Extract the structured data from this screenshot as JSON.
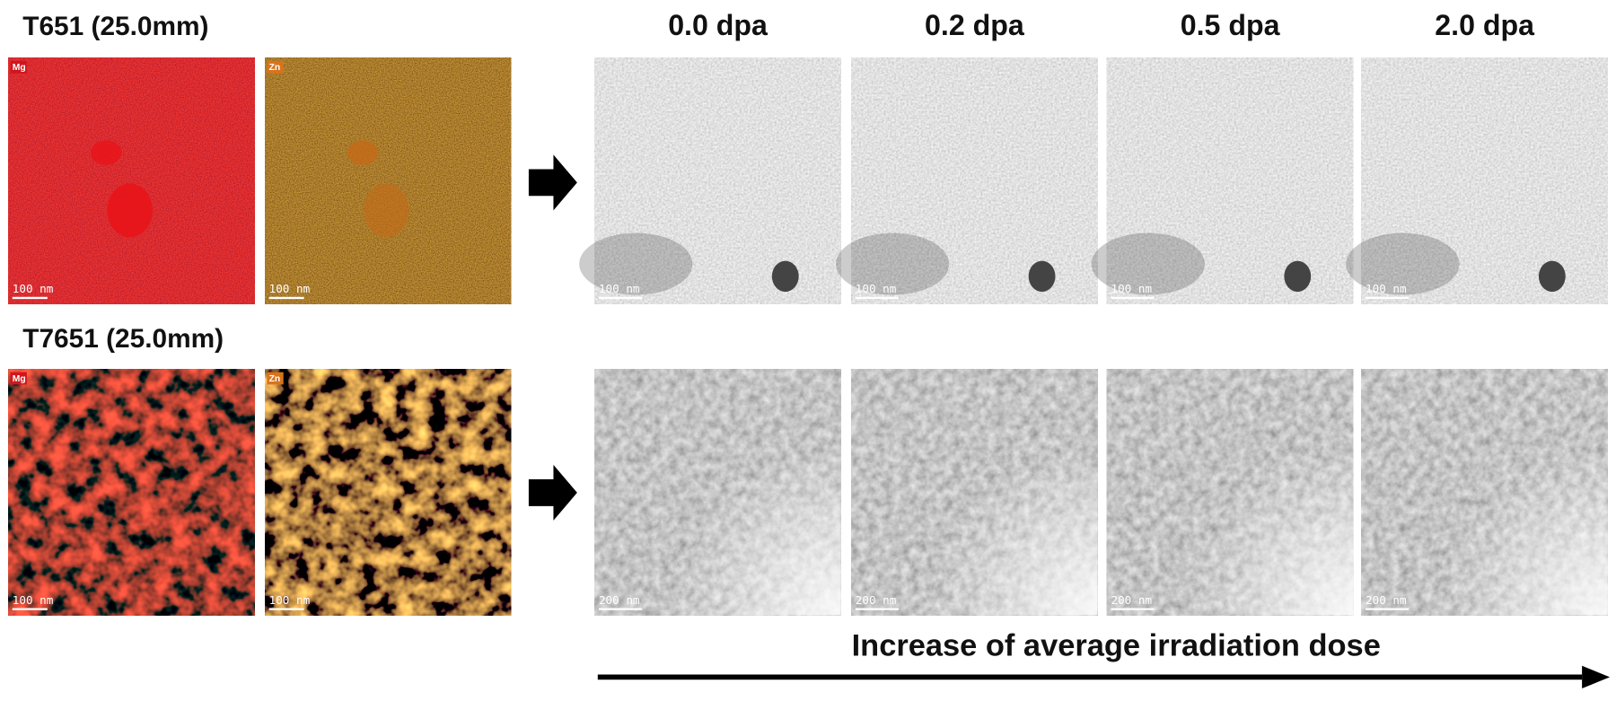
{
  "columns": [
    "0.0 dpa",
    "0.2 dpa",
    "0.5 dpa",
    "2.0 dpa"
  ],
  "rows": [
    {
      "label": "T651 (25.0mm)",
      "maps": [
        {
          "element": "Mg",
          "scale": "100 nm"
        },
        {
          "element": "Zn",
          "scale": "100 nm"
        }
      ],
      "tem_scales": [
        "100 nm",
        "100 nm",
        "100 nm",
        "100 nm"
      ]
    },
    {
      "label": "T7651 (25.0mm)",
      "maps": [
        {
          "element": "Mg",
          "scale": "100 nm"
        },
        {
          "element": "Zn",
          "scale": "100 nm"
        }
      ],
      "tem_scales": [
        "200 nm",
        "200 nm",
        "200 nm",
        "200 nm"
      ]
    }
  ],
  "caption": "Increase of average irradiation dose"
}
